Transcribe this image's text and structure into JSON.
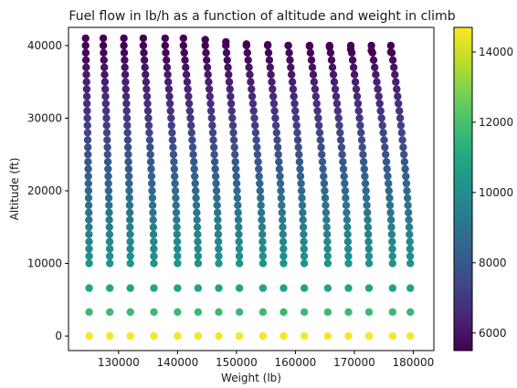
{
  "chart_data": {
    "type": "scatter",
    "title": "Fuel flow in lb/h as a function of altitude and weight in climb",
    "xlabel": "Weight (lb)",
    "ylabel": "Altitude (ft)",
    "xlim": [
      121500,
      183500
    ],
    "ylim": [
      -2000,
      42500
    ],
    "x_ticks": [
      130000,
      140000,
      150000,
      160000,
      170000,
      180000
    ],
    "y_ticks": [
      0,
      10000,
      20000,
      30000,
      40000
    ],
    "colorbar": {
      "colormap": "viridis",
      "range": [
        5500,
        14700
      ],
      "ticks": [
        6000,
        8000,
        10000,
        12000,
        14000
      ]
    },
    "grid": false,
    "base_weights": [
      125000,
      128500,
      132000,
      136000,
      140000,
      143500,
      147000,
      150500,
      154500,
      158000,
      161500,
      165500,
      169000,
      172500,
      176500,
      179500
    ],
    "top_weights": [
      124400,
      127400,
      130900,
      134200,
      137900,
      141000,
      144700,
      148200,
      151700,
      155300,
      158800,
      162400,
      165800,
      169400,
      172900,
      176200
    ],
    "top_altitudes": [
      41000,
      41000,
      41000,
      41000,
      41000,
      41000,
      40800,
      40500,
      40200,
      40100,
      40000,
      39900,
      39800,
      39500,
      39300,
      39100
    ],
    "low_altitudes": [
      0,
      3300,
      6600
    ],
    "low_fuel_flow": [
      14600,
      11700,
      10800
    ],
    "column_altitudes": [
      10000,
      11000,
      12000,
      13000,
      14000,
      15000,
      16000,
      17000,
      18000,
      19000,
      20000,
      21000,
      22000,
      23000,
      24000,
      25000,
      26000,
      27000,
      28000,
      29000,
      30000,
      31000,
      32000,
      33000,
      34000,
      35000,
      36000,
      37000,
      38000,
      39000,
      40000
    ],
    "column_fuel_flow_range": [
      10200,
      5500
    ]
  }
}
